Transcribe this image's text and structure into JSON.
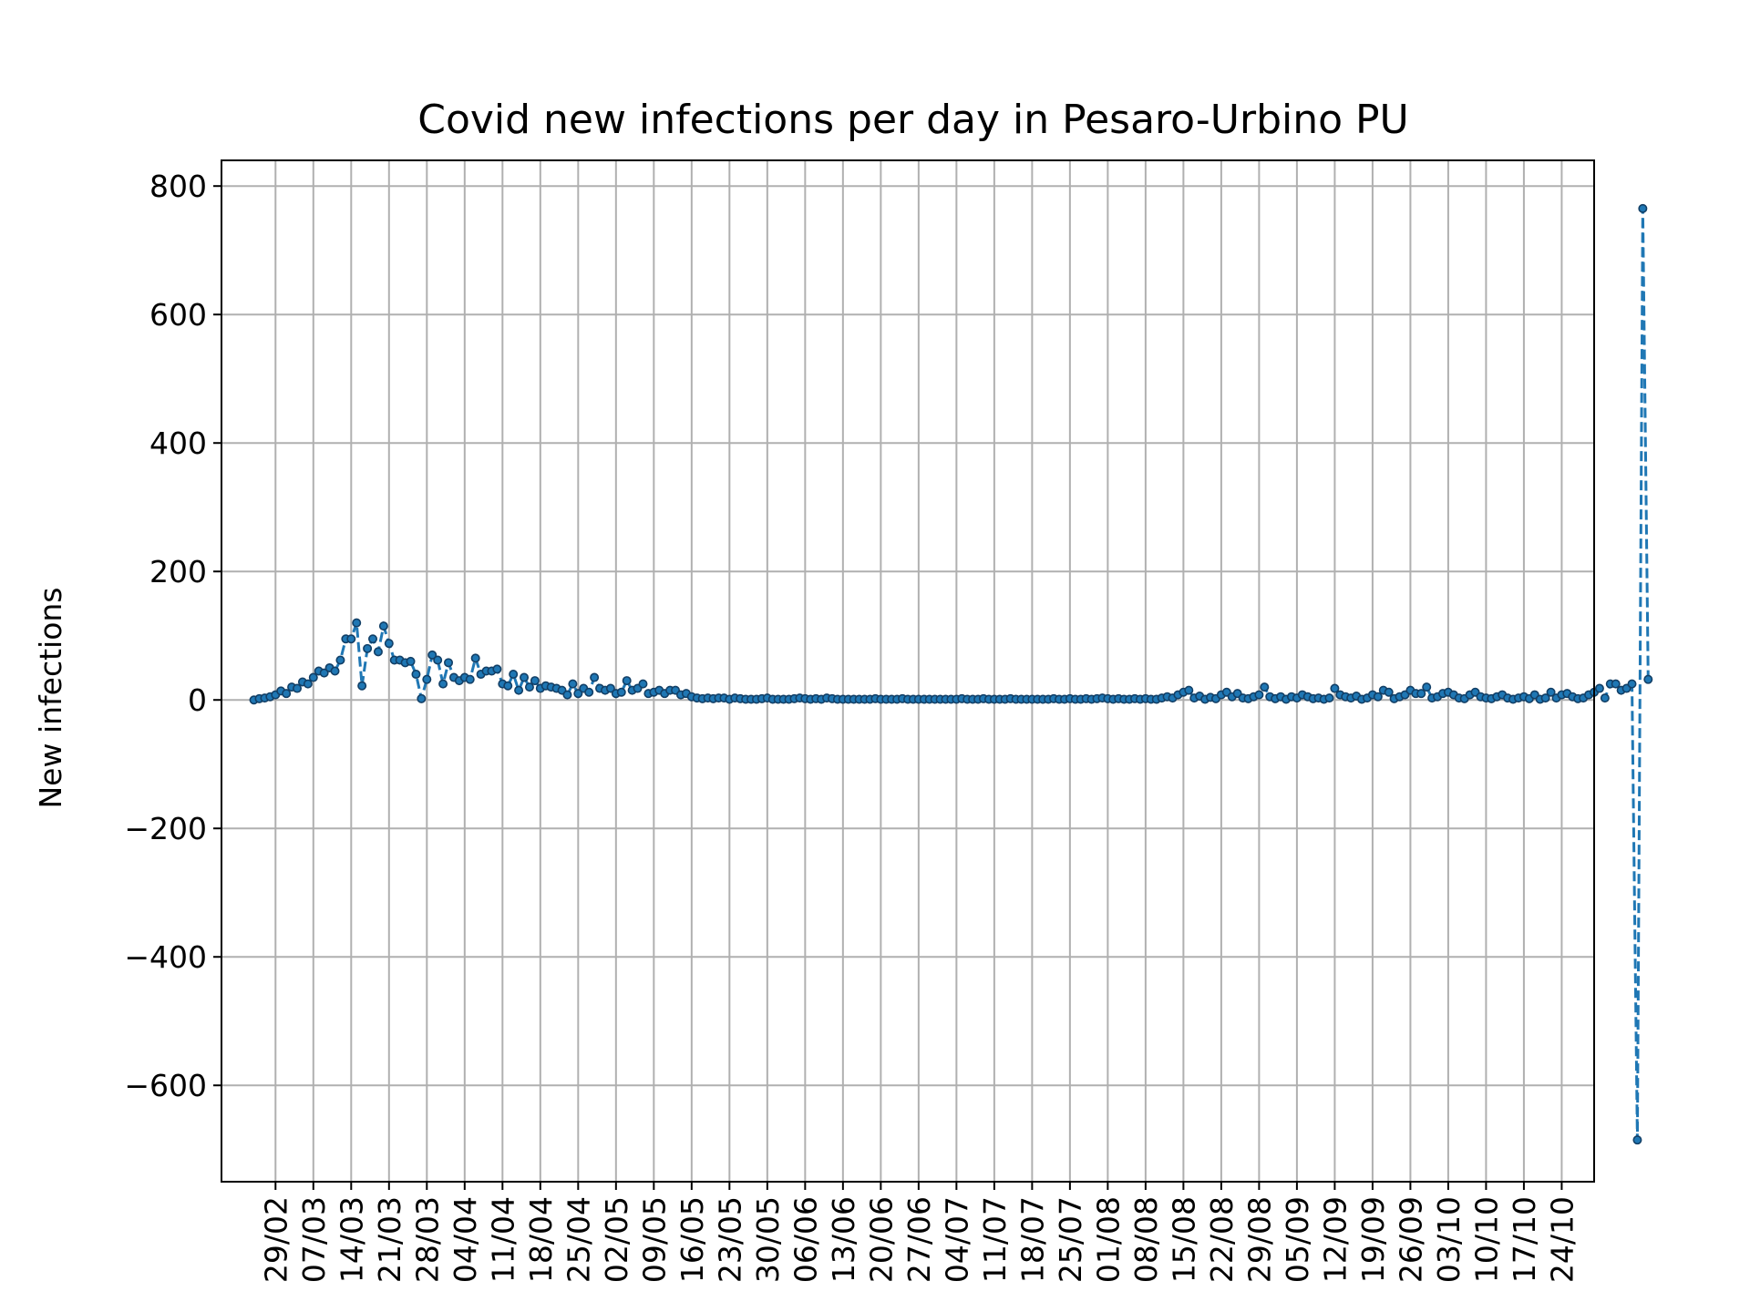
{
  "chart_data": {
    "type": "line",
    "title": "Covid new infections per day in Pesaro-Urbino PU",
    "xlabel": "",
    "ylabel": "New infections",
    "ylim": [
      -750,
      840
    ],
    "xlim": [
      "2020-02-19",
      "2020-10-30"
    ],
    "grid": true,
    "line_style": "dashed",
    "marker": "dot",
    "series_color": "#1f77b4",
    "x_ticks": [
      {
        "date": "2020-02-29",
        "label": "29/02"
      },
      {
        "date": "2020-03-07",
        "label": "07/03"
      },
      {
        "date": "2020-03-14",
        "label": "14/03"
      },
      {
        "date": "2020-03-21",
        "label": "21/03"
      },
      {
        "date": "2020-03-28",
        "label": "28/03"
      },
      {
        "date": "2020-04-04",
        "label": "04/04"
      },
      {
        "date": "2020-04-11",
        "label": "11/04"
      },
      {
        "date": "2020-04-18",
        "label": "18/04"
      },
      {
        "date": "2020-04-25",
        "label": "25/04"
      },
      {
        "date": "2020-05-02",
        "label": "02/05"
      },
      {
        "date": "2020-05-09",
        "label": "09/05"
      },
      {
        "date": "2020-05-16",
        "label": "16/05"
      },
      {
        "date": "2020-05-23",
        "label": "23/05"
      },
      {
        "date": "2020-05-30",
        "label": "30/05"
      },
      {
        "date": "2020-06-06",
        "label": "06/06"
      },
      {
        "date": "2020-06-13",
        "label": "13/06"
      },
      {
        "date": "2020-06-20",
        "label": "20/06"
      },
      {
        "date": "2020-06-27",
        "label": "27/06"
      },
      {
        "date": "2020-07-04",
        "label": "04/07"
      },
      {
        "date": "2020-07-11",
        "label": "11/07"
      },
      {
        "date": "2020-07-18",
        "label": "18/07"
      },
      {
        "date": "2020-07-25",
        "label": "25/07"
      },
      {
        "date": "2020-08-01",
        "label": "01/08"
      },
      {
        "date": "2020-08-08",
        "label": "08/08"
      },
      {
        "date": "2020-08-15",
        "label": "15/08"
      },
      {
        "date": "2020-08-22",
        "label": "22/08"
      },
      {
        "date": "2020-08-29",
        "label": "29/08"
      },
      {
        "date": "2020-09-05",
        "label": "05/09"
      },
      {
        "date": "2020-09-12",
        "label": "12/09"
      },
      {
        "date": "2020-09-19",
        "label": "19/09"
      },
      {
        "date": "2020-09-26",
        "label": "26/09"
      },
      {
        "date": "2020-10-03",
        "label": "03/10"
      },
      {
        "date": "2020-10-10",
        "label": "10/10"
      },
      {
        "date": "2020-10-17",
        "label": "17/10"
      },
      {
        "date": "2020-10-24",
        "label": "24/10"
      }
    ],
    "y_ticks": [
      {
        "value": 800,
        "label": "800"
      },
      {
        "value": 600,
        "label": "600"
      },
      {
        "value": 400,
        "label": "400"
      },
      {
        "value": 200,
        "label": "200"
      },
      {
        "value": 0,
        "label": "0"
      },
      {
        "value": -200,
        "label": "−200"
      },
      {
        "value": -400,
        "label": "−400"
      },
      {
        "value": -600,
        "label": "−600"
      }
    ],
    "start_date": "2020-02-25",
    "values": [
      0,
      2,
      3,
      5,
      8,
      14,
      10,
      20,
      18,
      28,
      25,
      35,
      45,
      42,
      50,
      45,
      62,
      95,
      95,
      120,
      22,
      80,
      95,
      75,
      115,
      88,
      62,
      62,
      58,
      60,
      40,
      2,
      32,
      70,
      62,
      25,
      58,
      35,
      30,
      35,
      32,
      65,
      40,
      45,
      45,
      48,
      25,
      22,
      40,
      15,
      35,
      20,
      30,
      18,
      22,
      20,
      18,
      15,
      8,
      25,
      10,
      18,
      12,
      35,
      18,
      15,
      18,
      10,
      12,
      30,
      15,
      18,
      25,
      10,
      12,
      15,
      10,
      15,
      15,
      8,
      10,
      5,
      3,
      2,
      3,
      2,
      3,
      3,
      1,
      3,
      2,
      1,
      1,
      1,
      2,
      3,
      1,
      1,
      1,
      1,
      2,
      3,
      2,
      1,
      2,
      1,
      3,
      2,
      1,
      1,
      1,
      1,
      1,
      1,
      1,
      2,
      1,
      1,
      1,
      1,
      2,
      1,
      1,
      1,
      1,
      1,
      1,
      1,
      1,
      1,
      1,
      2,
      1,
      1,
      1,
      2,
      1,
      1,
      1,
      1,
      2,
      1,
      1,
      1,
      1,
      1,
      1,
      1,
      2,
      1,
      1,
      2,
      1,
      1,
      2,
      1,
      2,
      3,
      2,
      1,
      2,
      1,
      1,
      2,
      1,
      2,
      1,
      1,
      3,
      5,
      3,
      8,
      12,
      15,
      3,
      6,
      1,
      4,
      2,
      8,
      12,
      5,
      10,
      3,
      2,
      5,
      8,
      20,
      5,
      2,
      5,
      1,
      5,
      3,
      8,
      5,
      2,
      3,
      1,
      3,
      18,
      8,
      5,
      3,
      6,
      1,
      3,
      8,
      5,
      15,
      12,
      2,
      5,
      8,
      15,
      10,
      10,
      20,
      3,
      5,
      10,
      12,
      8,
      3,
      2,
      8,
      12,
      5,
      3,
      2,
      5,
      8,
      3,
      1,
      3,
      5,
      2,
      8,
      1,
      3,
      12,
      3,
      8,
      10,
      5,
      2,
      3,
      8,
      12,
      18,
      3,
      25,
      25,
      15,
      18,
      25,
      -685,
      765,
      32
    ]
  }
}
